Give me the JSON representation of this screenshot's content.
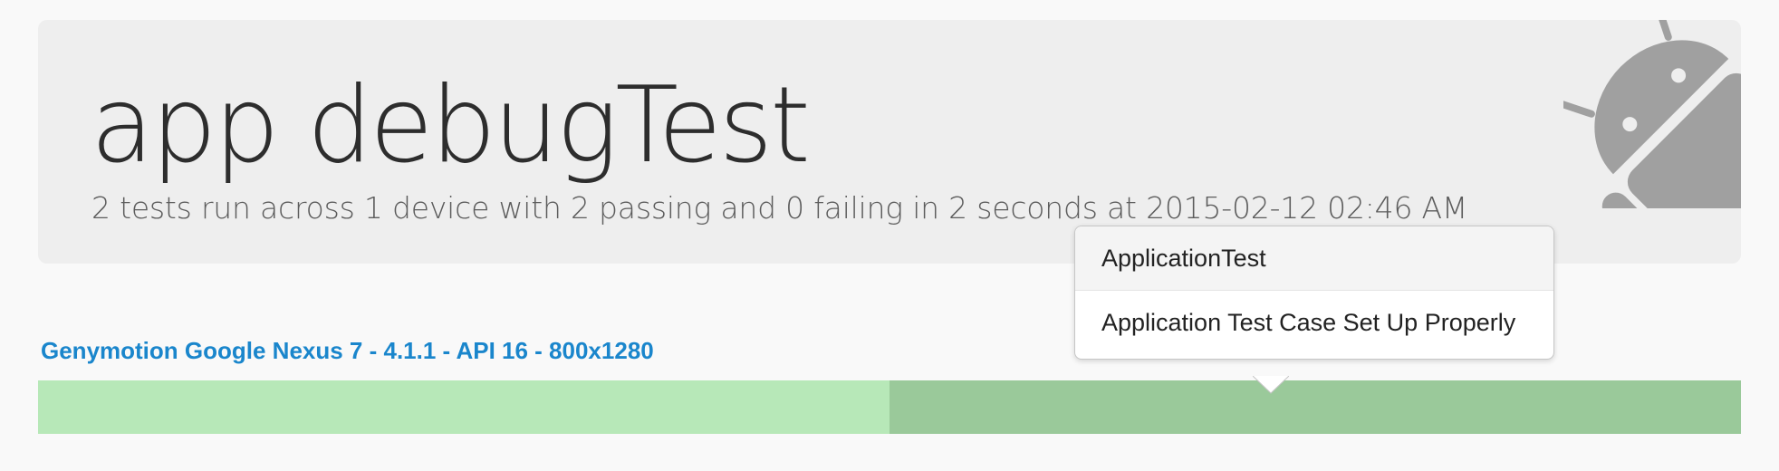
{
  "report": {
    "title": "app debugTest",
    "summary": "2 tests run across 1 device with 2 passing and 0 failing in 2 seconds at 2015-02-12 02:46 AM"
  },
  "device": {
    "name": "Genymotion Google Nexus 7 - 4.1.1 - API 16 - 800x1280",
    "tests": [
      {
        "status": "passed",
        "color": "#b7e8b8"
      },
      {
        "status": "passed",
        "color": "#9ac99a"
      }
    ]
  },
  "tooltip": {
    "class_name": "ApplicationTest",
    "test_name": "Application Test Case Set Up Properly"
  },
  "icons": {
    "header_logo": "android-icon"
  },
  "colors": {
    "device_name": "#1a86cc",
    "header_bg": "#eeeeee",
    "pass_light": "#b7e8b8",
    "pass_dark": "#9ac99a"
  }
}
